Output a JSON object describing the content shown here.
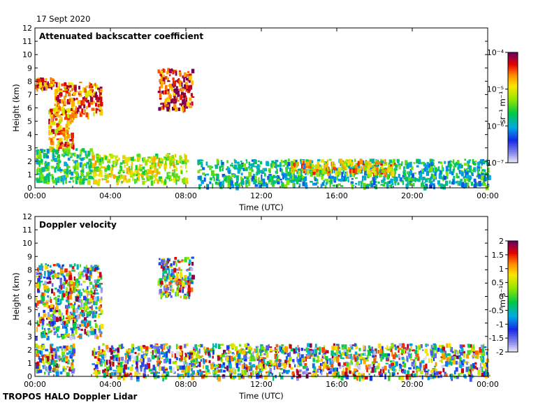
{
  "header": {
    "date": "17 Sept 2020"
  },
  "footer": {
    "label": "TROPOS HALO Doppler Lidar"
  },
  "chart_data": [
    {
      "type": "heatmap",
      "title": "Attenuated backscatter coefficient",
      "xlabel": "Time (UTC)",
      "ylabel": "Height (km)",
      "x_tick_labels": [
        "00:00",
        "04:00",
        "08:00",
        "12:00",
        "16:00",
        "20:00",
        "00:00"
      ],
      "x_ticks_hours": [
        0,
        4,
        8,
        12,
        16,
        20,
        24
      ],
      "y_ticks": [
        0,
        1,
        2,
        3,
        4,
        5,
        6,
        7,
        8,
        9,
        10,
        11,
        12
      ],
      "xlim_hours": [
        0,
        24
      ],
      "ylim": [
        0,
        12
      ],
      "colorbar": {
        "label": "sr⁻¹ m⁻¹",
        "scale": "log",
        "range": [
          1e-07,
          0.0001
        ],
        "tick_labels": [
          "10⁻⁴",
          "10⁻⁵",
          "10⁻⁶",
          "10⁻⁷"
        ]
      },
      "features": [
        {
          "t0": 0.0,
          "t1": 1.0,
          "h0": 7.5,
          "h1": 8.3,
          "level": 0.85
        },
        {
          "t0": 1.0,
          "t1": 3.5,
          "h0": 5.5,
          "h1": 8.0,
          "level": 0.82
        },
        {
          "t0": 0.7,
          "t1": 2.0,
          "h0": 3.0,
          "h1": 6.0,
          "level": 0.78
        },
        {
          "t0": 6.5,
          "t1": 8.3,
          "h0": 6.0,
          "h1": 9.0,
          "level": 0.88
        },
        {
          "t0": 0.0,
          "t1": 3.0,
          "h0": 0.5,
          "h1": 3.0,
          "level": 0.45
        },
        {
          "t0": 3.0,
          "t1": 8.0,
          "h0": 0.5,
          "h1": 2.6,
          "level": 0.62
        },
        {
          "t0": 8.5,
          "t1": 24.0,
          "h0": 0.2,
          "h1": 2.2,
          "level": 0.4
        },
        {
          "t0": 13.5,
          "t1": 19.0,
          "h0": 1.2,
          "h1": 2.2,
          "level": 0.72
        }
      ]
    },
    {
      "type": "heatmap",
      "title": "Doppler velocity",
      "xlabel": "Time (UTC)",
      "ylabel": "Height (km)",
      "x_tick_labels": [
        "00:00",
        "04:00",
        "08:00",
        "12:00",
        "16:00",
        "20:00",
        "00:00"
      ],
      "x_ticks_hours": [
        0,
        4,
        8,
        12,
        16,
        20,
        24
      ],
      "y_ticks": [
        0,
        1,
        2,
        3,
        4,
        5,
        6,
        7,
        8,
        9,
        10,
        11,
        12
      ],
      "xlim_hours": [
        0,
        24
      ],
      "ylim": [
        0,
        12
      ],
      "colorbar": {
        "label": "m s⁻¹",
        "scale": "linear",
        "range": [
          -2,
          2
        ],
        "tick_labels": [
          "2",
          "1.5",
          "1",
          "0.5",
          "0",
          "-0.5",
          "-1",
          "-1.5",
          "-2"
        ]
      },
      "features": [
        {
          "t0": 0.0,
          "t1": 3.5,
          "h0": 3.0,
          "h1": 8.5,
          "level": 0.62
        },
        {
          "t0": 6.5,
          "t1": 8.3,
          "h0": 6.0,
          "h1": 9.0,
          "level": 0.35
        },
        {
          "t0": 0.0,
          "t1": 2.0,
          "h0": 0.3,
          "h1": 2.5,
          "level": 0.3
        },
        {
          "t0": 3.0,
          "t1": 24.0,
          "h0": 0.0,
          "h1": 2.5,
          "level": 0.5
        }
      ]
    }
  ]
}
